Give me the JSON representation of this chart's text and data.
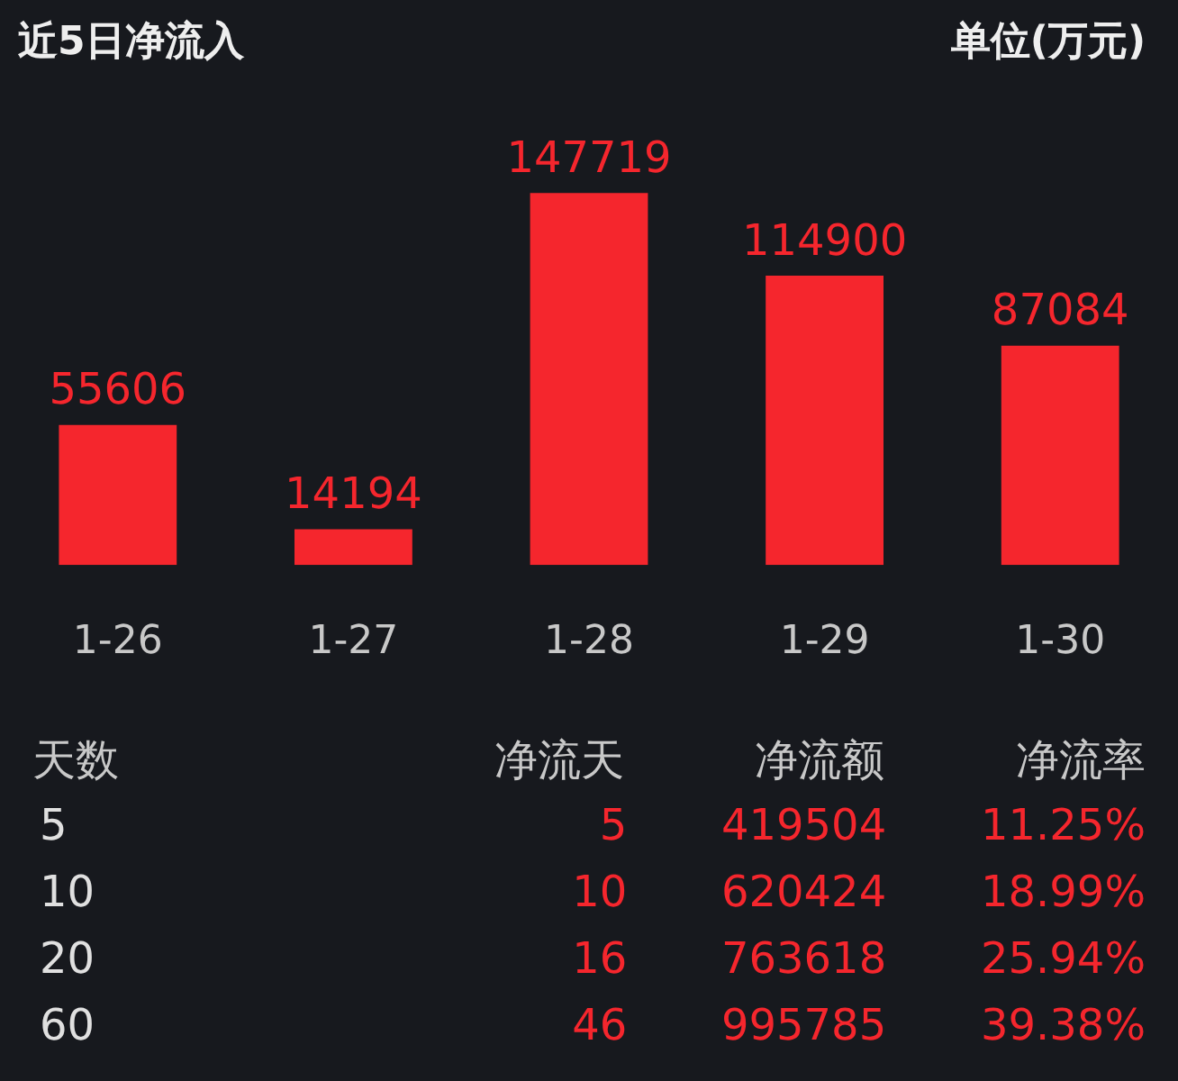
{
  "chart_data": [
    {
      "type": "bar",
      "title": "近5日净流入",
      "annotations": [
        "单位(万元)"
      ],
      "categories": [
        "1-26",
        "1-27",
        "1-28",
        "1-29",
        "1-30"
      ],
      "values": [
        55606,
        14194,
        147719,
        114900,
        87084
      ],
      "color": "#f5262d",
      "data_labels": true,
      "tick_labels": "x",
      "grid": false,
      "legend": false
    },
    {
      "type": "other",
      "categories": [
        "天数",
        "净流天",
        "净流额",
        "净流率"
      ],
      "cell_labels": [
        [
          "5",
          "5",
          "419504",
          "11.25%"
        ],
        [
          "10",
          "10",
          "620424",
          "18.99%"
        ],
        [
          "20",
          "16",
          "763618",
          "25.94%"
        ],
        [
          "60",
          "46",
          "995785",
          "39.38%"
        ]
      ]
    }
  ]
}
